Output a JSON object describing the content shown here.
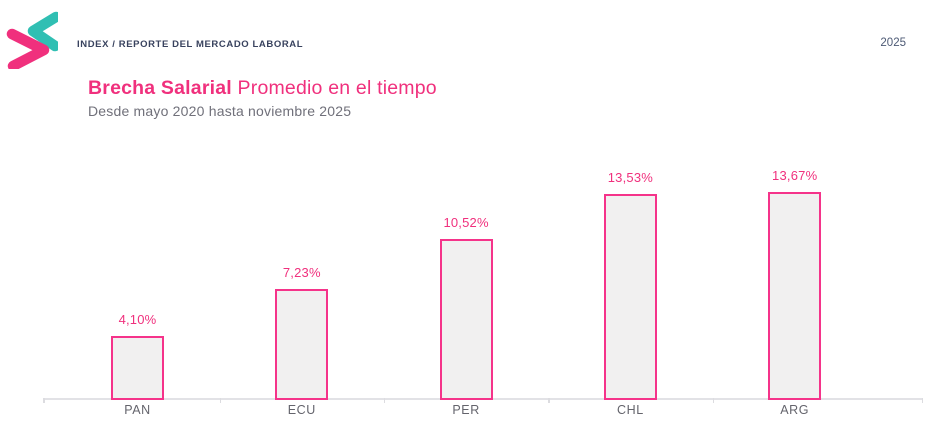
{
  "header": {
    "breadcrumb": "INDEX / REPORTE DEL MERCADO LABORAL",
    "year": "2025"
  },
  "title": {
    "highlight": "Brecha Salarial",
    "rest": " Promedio en el tiempo",
    "subtitle": "Desde mayo 2020 hasta noviembre 2025"
  },
  "colors": {
    "accent_pink": "#f0307d",
    "bar_border_pink": "#f5338a",
    "bar_fill": "#f1f0f0",
    "logo_teal": "#30bfb3",
    "logo_pink": "#f0307d",
    "navy_text": "#38425e",
    "gray_text": "#70707a",
    "axis_gray": "#e2e2e6"
  },
  "chart_data": {
    "type": "bar",
    "categories": [
      "PAN",
      "ECU",
      "PER",
      "CHL",
      "ARG"
    ],
    "values": [
      4.1,
      7.23,
      10.52,
      13.53,
      13.67
    ],
    "value_labels": [
      "4,10%",
      "7,23%",
      "10,52%",
      "13,53%",
      "13,67%"
    ],
    "title": "Brecha Salarial Promedio en el tiempo",
    "subtitle": "Desde mayo 2020 hasta noviembre 2025",
    "xlabel": "",
    "ylabel": "",
    "ylim": [
      0,
      14.5
    ],
    "unit": "%",
    "grid": false,
    "legend": false,
    "bar_label_position": "above",
    "axis_ticks": "category-boundaries"
  }
}
